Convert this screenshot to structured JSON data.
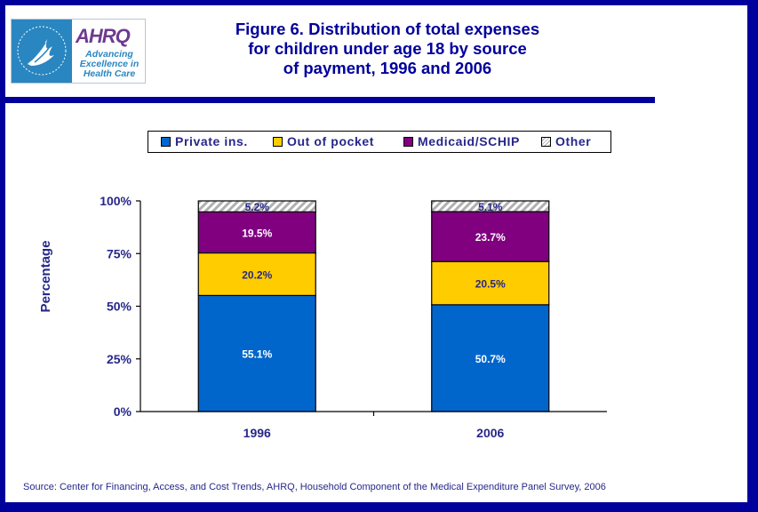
{
  "header": {
    "title_lines": [
      "Figure 6. Distribution of total expenses",
      "for children under age 18 by source",
      "of payment, 1996 and 2006"
    ],
    "logo": {
      "name": "AHRQ",
      "tagline_lines": [
        "Advancing",
        "Excellence in",
        "Health Care"
      ],
      "hhs_icon": "hhs-eagle-icon"
    }
  },
  "colors": {
    "frame": "#00009c",
    "text": "#27278a",
    "private": "#0066cc",
    "oop": "#ffcc00",
    "medicaid": "#800080",
    "other": "#ffffff"
  },
  "chart_data": {
    "type": "bar",
    "stacked": true,
    "title": "Figure 6. Distribution of total expenses for children under age 18 by source of payment, 1996 and 2006",
    "xlabel": "",
    "ylabel": "Percentage",
    "ylim": [
      0,
      100
    ],
    "yticks": [
      "0%",
      "25%",
      "50%",
      "75%",
      "100%"
    ],
    "ytick_values": [
      0,
      25,
      50,
      75,
      100
    ],
    "categories": [
      "1996",
      "2006"
    ],
    "legend_position": "top",
    "grid": false,
    "series": [
      {
        "name": "Private ins.",
        "color": "#0066cc",
        "label_color": "#ffffff",
        "values": [
          55.1,
          50.7
        ],
        "labels": [
          "55.1%",
          "50.7%"
        ]
      },
      {
        "name": "Out of pocket",
        "color": "#ffcc00",
        "label_color": "#27278a",
        "values": [
          20.2,
          20.5
        ],
        "labels": [
          "20.2%",
          "20.5%"
        ]
      },
      {
        "name": "Medicaid/SCHIP",
        "color": "#800080",
        "label_color": "#ffffff",
        "values": [
          19.5,
          23.7
        ],
        "labels": [
          "19.5%",
          "23.7%"
        ]
      },
      {
        "name": "Other",
        "color": "hatched",
        "label_color": "#27278a",
        "values": [
          5.2,
          5.1
        ],
        "labels": [
          "5.2%",
          "5.1%"
        ]
      }
    ]
  },
  "footer": {
    "source": "Source: Center for Financing, Access, and Cost Trends, AHRQ, Household Component of the Medical Expenditure Panel Survey, 2006"
  }
}
